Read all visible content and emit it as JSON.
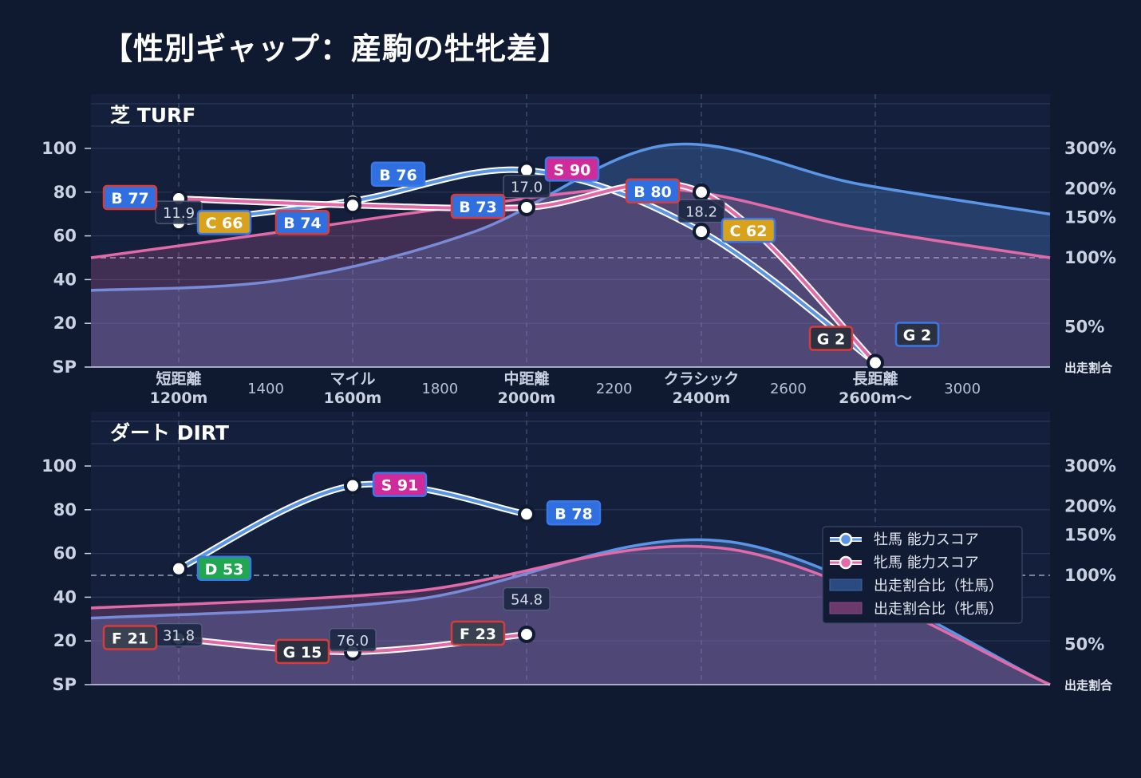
{
  "title": "【性別ギャップ：産駒の牡牝差】",
  "colors": {
    "background": "#0f1a30",
    "plot_bg": "#131f3b",
    "male": "#5b95e6",
    "female": "#e26aa8",
    "grade_S": "#d02b9a",
    "grade_B": "#2f6fe0",
    "grade_C": "#d8a21c",
    "grade_D": "#21a651",
    "grade_F": "#3a4150",
    "grade_G": "#2b3140",
    "border_male": "#3a78e8",
    "border_female": "#d93a3a"
  },
  "legend": {
    "male_score": "牡馬 能力スコア",
    "female_score": "牝馬 能力スコア",
    "male_ratio": "出走割合比（牡馬）",
    "female_ratio": "出走割合比（牝馬）"
  },
  "chart_data": [
    {
      "type": "line",
      "title": "芝 TURF",
      "left_axis": {
        "ticks": [
          "100",
          "80",
          "60",
          "40",
          "20",
          "SP"
        ],
        "ylim": [
          0,
          100
        ]
      },
      "right_axis": {
        "ticks": [
          "300%",
          "200%",
          "150%",
          "100%",
          "50%"
        ],
        "label": "出走割合",
        "scale": "log"
      },
      "x_categories": [
        {
          "label1": "短距離",
          "label2": "1200m"
        },
        {
          "label1": "マイル",
          "label2": "1600m"
        },
        {
          "label1": "中距離",
          "label2": "2000m"
        },
        {
          "label1": "クラシック",
          "label2": "2400m"
        },
        {
          "label1": "長距離",
          "label2": "2600m〜"
        }
      ],
      "x_ticks": [
        "1400",
        "1800",
        "2200",
        "2600",
        "3000"
      ],
      "series": [
        {
          "name": "牡馬 能力スコア",
          "values": [
            66,
            76,
            90,
            62,
            2
          ],
          "labels": [
            "C 66",
            "B 76",
            "S 90",
            "C 62",
            "G 2"
          ],
          "grades": [
            "C",
            "B",
            "S",
            "C",
            "G"
          ]
        },
        {
          "name": "牝馬 能力スコア",
          "values": [
            77,
            74,
            73,
            80,
            2
          ],
          "labels": [
            "B 77",
            "B 74",
            "B 73",
            "B 80",
            "G 2"
          ],
          "grades": [
            "B",
            "B",
            "B",
            "B",
            "G"
          ]
        }
      ],
      "gap_labels": [
        "11.9",
        "",
        "17.0",
        "18.2",
        ""
      ],
      "ratio_male": [
        0.72,
        0.8,
        1.3,
        3.1,
        2.1,
        1.55
      ],
      "ratio_female": [
        1.0,
        1.3,
        1.7,
        2.0,
        1.35,
        1.0
      ]
    },
    {
      "type": "line",
      "title": "ダート DIRT",
      "left_axis": {
        "ticks": [
          "100",
          "80",
          "60",
          "40",
          "20",
          "SP"
        ],
        "ylim": [
          0,
          100
        ]
      },
      "right_axis": {
        "ticks": [
          "300%",
          "200%",
          "150%",
          "100%",
          "50%"
        ],
        "label": "出走割合",
        "scale": "log"
      },
      "series": [
        {
          "name": "牡馬 能力スコア",
          "values": [
            53,
            91,
            78
          ],
          "labels": [
            "D 53",
            "S 91",
            "B 78"
          ],
          "grades": [
            "D",
            "S",
            "B"
          ]
        },
        {
          "name": "牝馬 能力スコア",
          "values": [
            21,
            15,
            23
          ],
          "labels": [
            "F 21",
            "G 15",
            "F 23"
          ],
          "grades": [
            "F",
            "G",
            "F"
          ]
        }
      ],
      "gap_labels": [
        "31.8",
        "76.0",
        "54.8"
      ],
      "ratio_male": [
        0.65,
        0.78,
        1.4,
        0.2
      ],
      "ratio_female": [
        0.72,
        0.85,
        1.3,
        0.2
      ]
    }
  ]
}
